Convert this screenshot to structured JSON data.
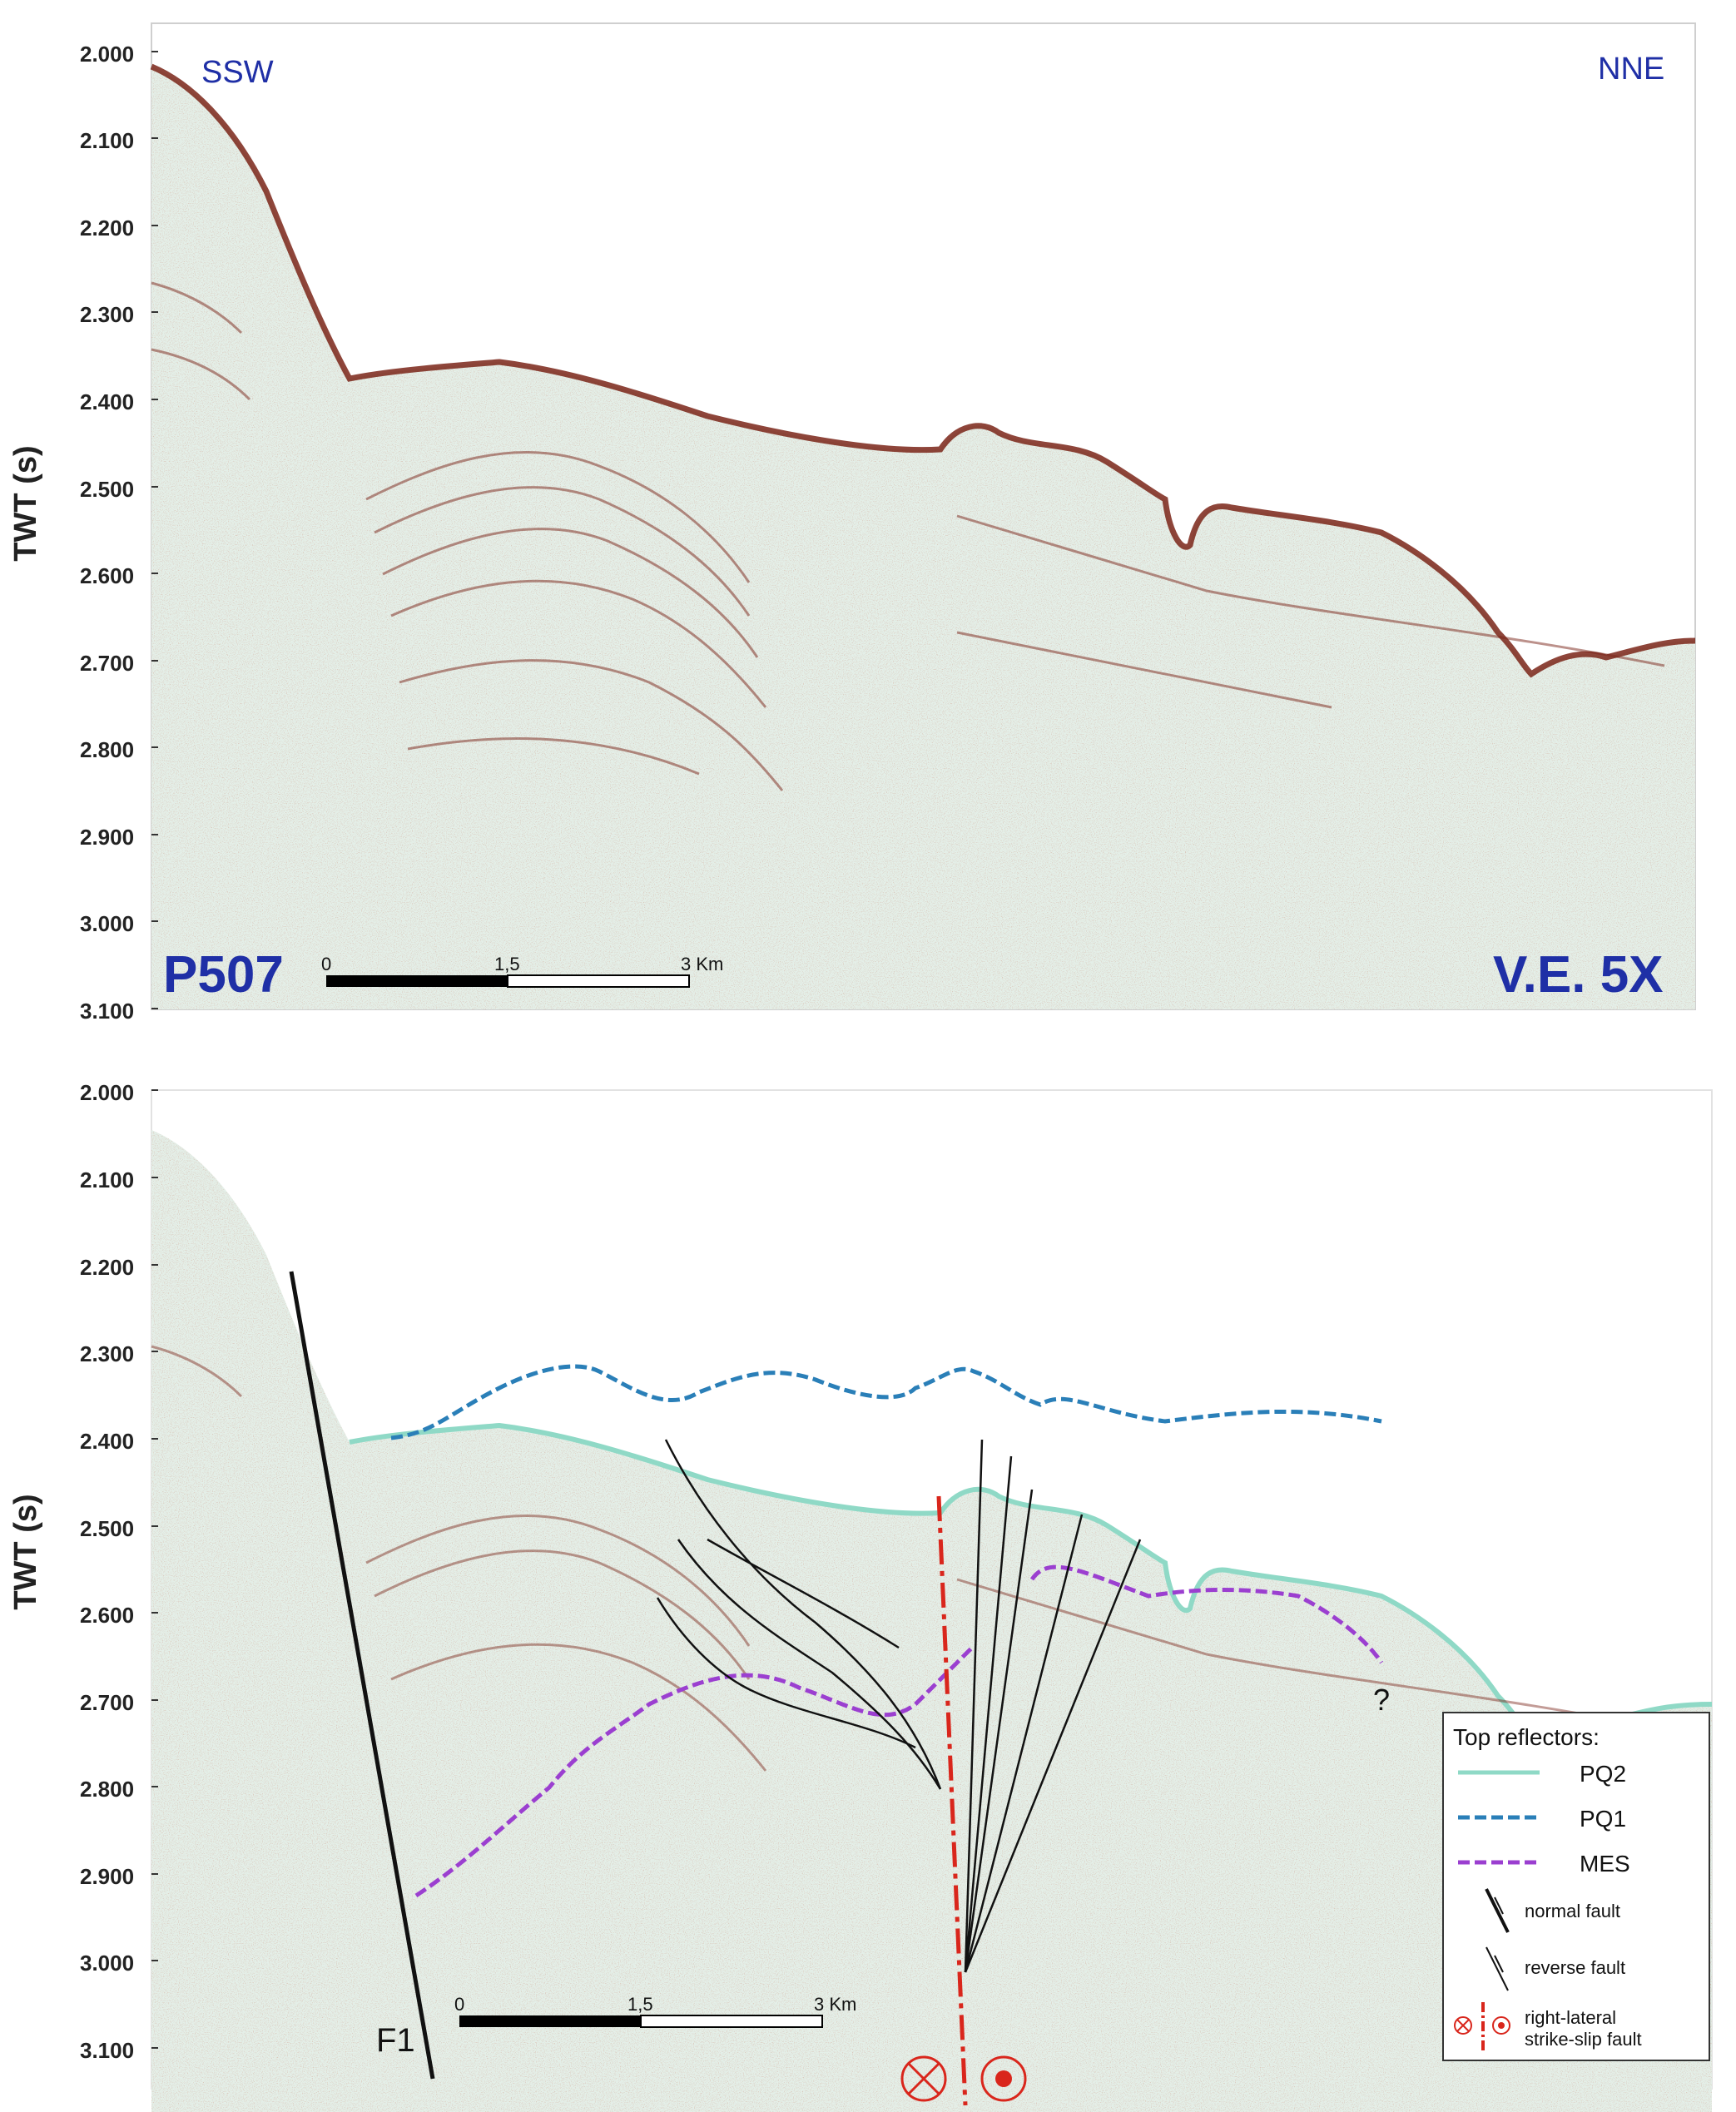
{
  "panels": [
    {
      "id": "uninterpreted",
      "axis": {
        "label": "TWT (s)",
        "ticks": [
          "2.000",
          "2.100",
          "2.200",
          "2.300",
          "2.400",
          "2.500",
          "2.600",
          "2.700",
          "2.800",
          "2.900",
          "3.000",
          "3.100"
        ]
      },
      "direction_left": "SSW",
      "direction_right": "NNE",
      "profile_name": "P507",
      "vertical_exaggeration": "V.E. 5X",
      "scale_bar": {
        "zero": "0",
        "mid": "1,5",
        "end": "3 Km"
      }
    },
    {
      "id": "interpreted",
      "axis": {
        "label": "TWT (s)",
        "ticks": [
          "2.000",
          "2.100",
          "2.200",
          "2.300",
          "2.400",
          "2.500",
          "2.600",
          "2.700",
          "2.800",
          "2.900",
          "3.000",
          "3.100"
        ]
      },
      "fault_label": "F1",
      "question_mark": "?",
      "scale_bar": {
        "zero": "0",
        "mid": "1,5",
        "end": "3 Km"
      },
      "legend": {
        "title": "Top reflectors:",
        "reflectors": [
          {
            "name": "PQ2",
            "color": "#8fd9c6",
            "style": "solid"
          },
          {
            "name": "PQ1",
            "color": "#2a7fb8",
            "style": "dashed"
          },
          {
            "name": "MES",
            "color": "#9b3fd0",
            "style": "dashed"
          }
        ],
        "symbols": [
          {
            "label": "normal fault"
          },
          {
            "label": "reverse fault"
          },
          {
            "label_line1": "right-lateral",
            "label_line2": "strike-slip fault"
          }
        ]
      }
    }
  ],
  "colors": {
    "background": "#e6f0ea",
    "reflection": "#8a2a1c",
    "label_blue": "#1f2fa6",
    "strike_slip": "#d9261c",
    "fault_black": "#111111"
  }
}
